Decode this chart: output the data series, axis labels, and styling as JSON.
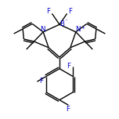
{
  "bg_color": "#ffffff",
  "bond_color": "#000000",
  "N_color": "#0000cc",
  "B_color": "#0000cc",
  "F_color": "#0000cc",
  "line_width": 1.0,
  "figsize": [
    1.52,
    1.52
  ],
  "dpi": 100,
  "xlim": [
    -1.7,
    1.7
  ],
  "ylim": [
    -2.2,
    1.3
  ]
}
